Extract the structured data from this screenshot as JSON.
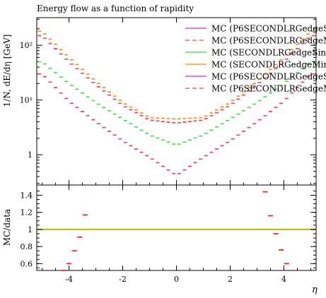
{
  "chart_data": [
    {
      "type": "line",
      "title": "Energy flow as a function of rapidity",
      "ylabel": "1/N, dE/dη [GeV]",
      "xlabel": "",
      "yscale": "log",
      "xlim": [
        -5.2,
        5.2
      ],
      "ylim": [
        0.28,
        320
      ],
      "yticks": [
        {
          "value": 1,
          "label": "1"
        },
        {
          "value": 10,
          "label": "10¹"
        },
        {
          "value": 100,
          "label": "10²"
        }
      ],
      "grid": false,
      "legend_position": "top-right",
      "series": [
        {
          "name": "MC (P6SECONDLRGedgeSi",
          "color": "#e020e0",
          "style": "solid",
          "x": [
            -5.0,
            -4.0,
            -3.0,
            -2.0,
            -1.0,
            0.0,
            1.0,
            2.0,
            3.0,
            4.0,
            5.0
          ],
          "y": [
            30,
            9.5,
            4.0,
            1.8,
            0.9,
            0.42,
            0.9,
            1.8,
            4.0,
            9.5,
            30
          ]
        },
        {
          "name": "MC (P6SECONDLRGedgeM",
          "color": "#ff4040",
          "style": "dashed",
          "x": [
            -5.0,
            -4.0,
            -3.0,
            -2.0,
            -1.0,
            0.0,
            1.0,
            2.0,
            3.0,
            4.0,
            5.0
          ],
          "y": [
            30,
            9.5,
            4.0,
            1.8,
            0.9,
            0.42,
            0.9,
            1.8,
            4.0,
            9.5,
            30
          ]
        },
        {
          "name": "MC (SECONDLRGedgeSin",
          "color": "#33dd33",
          "style": "solid",
          "x": [
            -5.0,
            -4.0,
            -3.0,
            -2.0,
            -1.0,
            0.0,
            1.0,
            2.0,
            3.0,
            4.0,
            5.0
          ],
          "y": [
            50,
            20,
            9.0,
            4.5,
            2.3,
            1.5,
            2.3,
            4.5,
            9.0,
            20,
            50
          ]
        },
        {
          "name": "MC (SECONDLRGedgeMin",
          "color": "#ff8800",
          "style": "solid",
          "x": [
            -5.0,
            -4.0,
            -3.0,
            -2.0,
            -1.0,
            0.0,
            1.0,
            2.0,
            3.0,
            4.0,
            5.0
          ],
          "y": [
            180,
            60,
            22,
            9.0,
            4.8,
            4.5,
            4.8,
            9.0,
            22,
            60,
            180
          ]
        },
        {
          "name": "MC (P6SECONDLRGedgeSi",
          "color": "#e020e0",
          "style": "solid",
          "x": [
            -5.0,
            -4.0,
            -3.0,
            -2.0,
            -1.0,
            0.0,
            1.0,
            2.0,
            3.0,
            4.0,
            5.0
          ],
          "y": [
            150,
            50,
            19,
            8.0,
            4.3,
            3.8,
            4.3,
            8.0,
            19,
            50,
            150
          ]
        },
        {
          "name": "MC (P6SECONDLRGedgeM",
          "color": "#ff4040",
          "style": "dashed",
          "x": [
            -5.0,
            -4.0,
            -3.0,
            -2.0,
            -1.0,
            0.0,
            1.0,
            2.0,
            3.0,
            4.0,
            5.0
          ],
          "y": [
            150,
            50,
            19,
            8.0,
            4.3,
            3.8,
            4.3,
            8.0,
            19,
            50,
            150
          ]
        }
      ]
    },
    {
      "type": "scatter",
      "ylabel": "MC/data",
      "xlabel": "η",
      "xlim": [
        -5.2,
        5.2
      ],
      "ylim": [
        0.52,
        1.52
      ],
      "xticks": [
        {
          "value": -4,
          "label": "-4"
        },
        {
          "value": -2,
          "label": "-2"
        },
        {
          "value": 0,
          "label": "0"
        },
        {
          "value": 2,
          "label": "2"
        },
        {
          "value": 4,
          "label": "4"
        }
      ],
      "yticks": [
        {
          "value": 0.6,
          "label": "0.6"
        },
        {
          "value": 0.8,
          "label": "0.8"
        },
        {
          "value": 1.0,
          "label": "1"
        },
        {
          "value": 1.2,
          "label": "1.2"
        },
        {
          "value": 1.4,
          "label": "1.4"
        }
      ],
      "reference_line": {
        "value": 1.0,
        "color": "#b8b800"
      },
      "series": [
        {
          "color": "#ff2020",
          "x": [
            -4.2,
            -4.0,
            -3.8,
            -3.6,
            -3.4,
            3.3,
            3.5,
            3.7,
            3.9,
            4.1
          ],
          "y": [
            0.52,
            0.6,
            0.75,
            0.91,
            1.17,
            1.44,
            1.16,
            0.95,
            0.76,
            0.6
          ]
        }
      ]
    }
  ]
}
